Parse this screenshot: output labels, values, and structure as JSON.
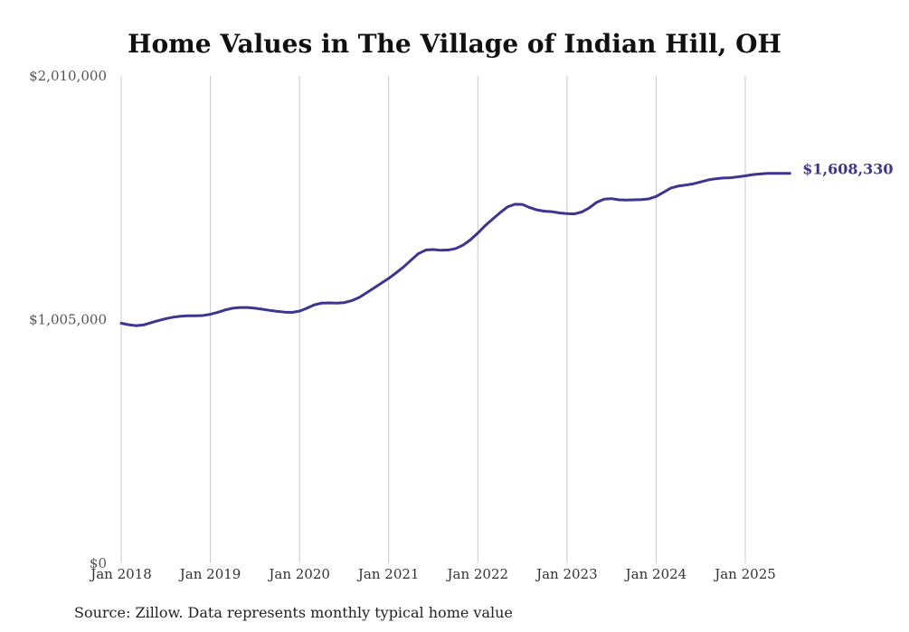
{
  "chart_data": {
    "type": "line",
    "title": "Home Values in The Village of Indian Hill, OH",
    "xlabel": "",
    "ylabel": "",
    "ylim": [
      0,
      2010000
    ],
    "y_ticks": [
      {
        "value": 0,
        "label": "$0"
      },
      {
        "value": 1005000,
        "label": "$1,005,000"
      },
      {
        "value": 2010000,
        "label": "$2,010,000"
      }
    ],
    "x_ticks": [
      {
        "value": "2018-01",
        "label": "Jan 2018"
      },
      {
        "value": "2019-01",
        "label": "Jan 2019"
      },
      {
        "value": "2020-01",
        "label": "Jan 2020"
      },
      {
        "value": "2021-01",
        "label": "Jan 2021"
      },
      {
        "value": "2022-01",
        "label": "Jan 2022"
      },
      {
        "value": "2023-01",
        "label": "Jan 2023"
      },
      {
        "value": "2024-01",
        "label": "Jan 2024"
      },
      {
        "value": "2025-01",
        "label": "Jan 2025"
      }
    ],
    "grid": {
      "vertical": true,
      "horizontal": false
    },
    "line_color": "#3d3590",
    "end_label": "$1,608,330",
    "series": [
      {
        "x": [
          "2018-01",
          "2018-02",
          "2018-03",
          "2018-04",
          "2018-05",
          "2018-06",
          "2018-07",
          "2018-08",
          "2018-09",
          "2018-10",
          "2018-11",
          "2018-12",
          "2019-01",
          "2019-02",
          "2019-03",
          "2019-04",
          "2019-05",
          "2019-06",
          "2019-07",
          "2019-08",
          "2019-09",
          "2019-10",
          "2019-11",
          "2019-12",
          "2020-01",
          "2020-02",
          "2020-03",
          "2020-04",
          "2020-05",
          "2020-06",
          "2020-07",
          "2020-08",
          "2020-09",
          "2020-10",
          "2020-11",
          "2020-12",
          "2021-01",
          "2021-02",
          "2021-03",
          "2021-04",
          "2021-05",
          "2021-06",
          "2021-07",
          "2021-08",
          "2021-09",
          "2021-10",
          "2021-11",
          "2021-12",
          "2022-01",
          "2022-02",
          "2022-03",
          "2022-04",
          "2022-05",
          "2022-06",
          "2022-07",
          "2022-08",
          "2022-09",
          "2022-10",
          "2022-11",
          "2022-12",
          "2023-01",
          "2023-02",
          "2023-03",
          "2023-04",
          "2023-05",
          "2023-06",
          "2023-07",
          "2023-08",
          "2023-09",
          "2023-10",
          "2023-11",
          "2023-12",
          "2024-01",
          "2024-02",
          "2024-03",
          "2024-04",
          "2024-05",
          "2024-06",
          "2024-07",
          "2024-08",
          "2024-09",
          "2024-10",
          "2024-11",
          "2024-12",
          "2025-01",
          "2025-02",
          "2025-03",
          "2025-04",
          "2025-05",
          "2025-06",
          "2025-07"
        ],
        "y": [
          990000,
          984000,
          980000,
          983000,
          992000,
          1001000,
          1009000,
          1015000,
          1019000,
          1021000,
          1021000,
          1022000,
          1027000,
          1035000,
          1045000,
          1052000,
          1055000,
          1055000,
          1052000,
          1048000,
          1043000,
          1039000,
          1036000,
          1035000,
          1040000,
          1052000,
          1066000,
          1073000,
          1074000,
          1073000,
          1075000,
          1083000,
          1096000,
          1115000,
          1135000,
          1155000,
          1175000,
          1198000,
          1222000,
          1250000,
          1277000,
          1292000,
          1294000,
          1291000,
          1292000,
          1298000,
          1312000,
          1334000,
          1362000,
          1393000,
          1420000,
          1446000,
          1470000,
          1481000,
          1480000,
          1467000,
          1457000,
          1452000,
          1450000,
          1445000,
          1442000,
          1441000,
          1449000,
          1466000,
          1489000,
          1502000,
          1504000,
          1499000,
          1498000,
          1499000,
          1500000,
          1503000,
          1513000,
          1530000,
          1548000,
          1556000,
          1560000,
          1565000,
          1573000,
          1581000,
          1586000,
          1589000,
          1590000,
          1594000,
          1598000,
          1603000,
          1606000,
          1608330,
          1608330,
          1608330,
          1608330
        ]
      }
    ]
  },
  "source_note": "Source: Zillow. Data represents monthly typical home value"
}
